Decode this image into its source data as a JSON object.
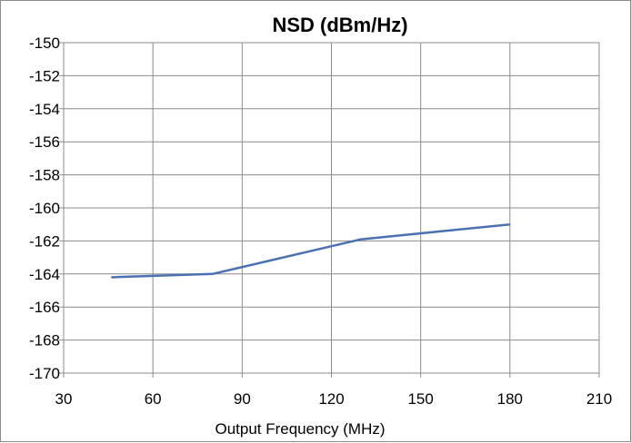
{
  "chart_data": {
    "type": "line",
    "title": "NSD (dBm/Hz)",
    "xlabel": "Output Frequency (MHz)",
    "ylabel": "",
    "xlim": [
      30,
      210
    ],
    "ylim": [
      -170,
      -150
    ],
    "x_ticks": [
      "30",
      "60",
      "90",
      "120",
      "150",
      "180",
      "210"
    ],
    "y_ticks": [
      "-150",
      "-152",
      "-154",
      "-156",
      "-158",
      "-160",
      "-162",
      "-164",
      "-166",
      "-168",
      "-170"
    ],
    "grid": true,
    "legend": "none",
    "series": [
      {
        "color": "#4a72b2",
        "x": [
          46,
          80,
          130,
          180
        ],
        "y": [
          -164.2,
          -164.0,
          -161.9,
          -161.0
        ]
      }
    ]
  }
}
